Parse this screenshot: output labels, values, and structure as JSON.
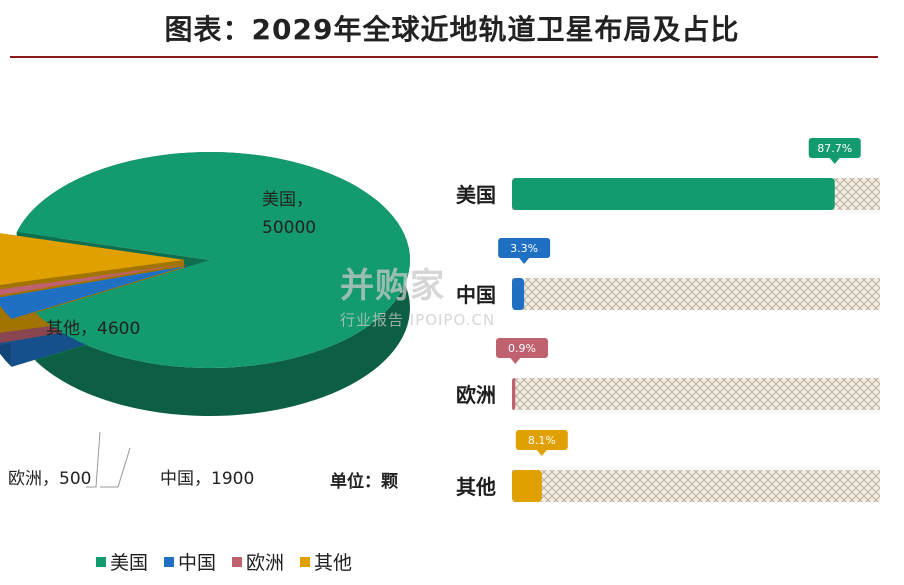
{
  "title": "图表：2029年全球近地轨道卫星布局及占比",
  "unit_label": "单位：颗",
  "watermark": {
    "main": "并购家",
    "sub": "行业报告 IPOIPO.CN"
  },
  "colors": {
    "美国": "#139a6e",
    "中国": "#1f6fc2",
    "欧洲": "#c0616f",
    "其他": "#e0a000"
  },
  "chart_data": [
    {
      "type": "pie",
      "categories": [
        "美国",
        "中国",
        "欧洲",
        "其他"
      ],
      "values": [
        50000,
        1900,
        500,
        4600
      ],
      "data_labels": [
        "美国，50000",
        "中国，1900",
        "欧洲，500",
        "其他，4600"
      ],
      "legend": {
        "position": "bottom",
        "entries": [
          "美国",
          "中国",
          "欧洲",
          "其他"
        ]
      }
    },
    {
      "type": "bar",
      "orientation": "horizontal",
      "categories": [
        "美国",
        "中国",
        "欧洲",
        "其他"
      ],
      "values": [
        87.7,
        3.3,
        0.9,
        8.1
      ],
      "value_labels": [
        "87.7%",
        "3.3%",
        "0.9%",
        "8.1%"
      ],
      "xlim": [
        0,
        100
      ]
    }
  ]
}
